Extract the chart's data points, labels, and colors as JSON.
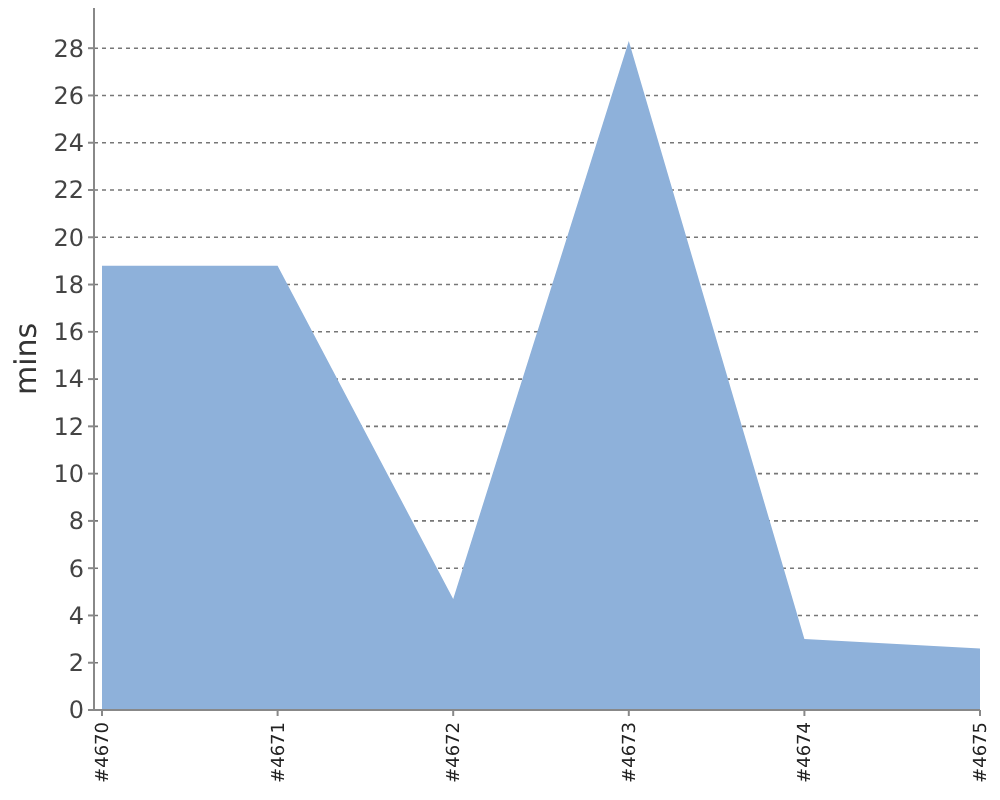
{
  "chart_data": {
    "type": "area",
    "ylabel": "mins",
    "categories": [
      "#4670",
      "#4671",
      "#4672",
      "#4673",
      "#4674",
      "#4675"
    ],
    "series": [
      {
        "color": "#8eb1da",
        "values": [
          18.8,
          18.8,
          4.7,
          28.3,
          3.0,
          2.6
        ]
      }
    ],
    "ylim": [
      0,
      29.7
    ],
    "yticks": [
      0,
      2,
      4,
      6,
      8,
      10,
      12,
      14,
      16,
      18,
      20,
      22,
      24,
      26,
      28
    ],
    "grid": "y"
  }
}
